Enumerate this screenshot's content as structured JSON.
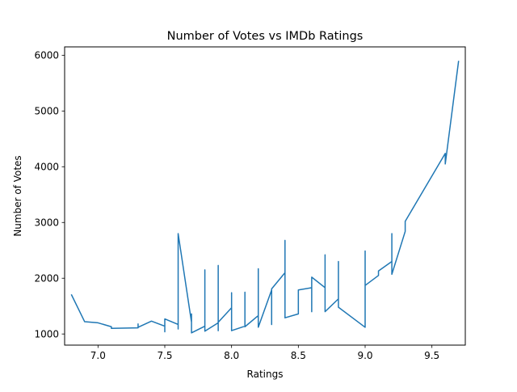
{
  "chart_data": {
    "type": "line",
    "title": "Number of Votes vs IMDb Ratings",
    "xlabel": "Ratings",
    "ylabel": "Number of Votes",
    "xlim": [
      6.75,
      9.75
    ],
    "ylim": [
      800,
      6150
    ],
    "xticks": [
      7.0,
      7.5,
      8.0,
      8.5,
      9.0,
      9.5
    ],
    "xtick_labels": [
      "7.0",
      "7.5",
      "8.0",
      "8.5",
      "9.0",
      "9.5"
    ],
    "yticks": [
      1000,
      2000,
      3000,
      4000,
      5000,
      6000
    ],
    "ytick_labels": [
      "1000",
      "2000",
      "3000",
      "4000",
      "5000",
      "6000"
    ],
    "grid": false,
    "line_color": "#1f77b4",
    "series": [
      {
        "x": [
          6.8,
          6.9,
          7.0,
          7.1,
          7.1,
          7.3,
          7.3,
          7.3,
          7.4,
          7.5,
          7.5,
          7.5,
          7.6,
          7.6,
          7.6,
          7.7,
          7.7,
          7.7,
          7.8,
          7.8,
          7.8,
          7.9,
          7.9,
          7.9,
          7.9,
          8.0,
          8.0,
          8.0,
          8.1,
          8.1,
          8.1,
          8.2,
          8.2,
          8.2,
          8.3,
          8.3,
          8.3,
          8.4,
          8.4,
          8.4,
          8.5,
          8.5,
          8.6,
          8.6,
          8.6,
          8.7,
          8.7,
          8.7,
          8.8,
          8.8,
          8.8,
          9.0,
          9.0,
          9.0,
          9.1,
          9.1,
          9.2,
          9.2,
          9.2,
          9.3,
          9.3,
          9.6,
          9.6,
          9.7
        ],
        "y": [
          1710,
          1220,
          1200,
          1130,
          1100,
          1110,
          1180,
          1120,
          1230,
          1140,
          1040,
          1270,
          1170,
          1090,
          2800,
          1210,
          1360,
          1020,
          1140,
          2150,
          1050,
          1200,
          2230,
          1060,
          1210,
          1470,
          1740,
          1060,
          1140,
          1750,
          1130,
          1330,
          2170,
          1120,
          1790,
          1170,
          1810,
          2100,
          2680,
          1290,
          1360,
          1790,
          1830,
          1400,
          2020,
          1830,
          2420,
          1400,
          1630,
          2300,
          1480,
          1120,
          2490,
          1870,
          2050,
          2130,
          2300,
          2800,
          2070,
          2840,
          3020,
          4240,
          4050,
          5900
        ]
      }
    ]
  }
}
